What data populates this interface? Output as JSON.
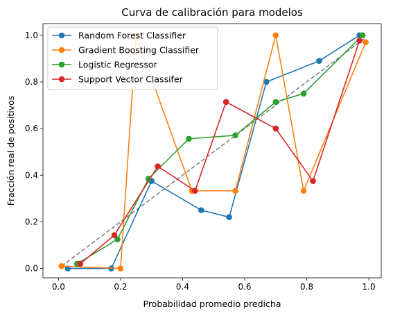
{
  "chart_data": {
    "type": "line",
    "title": "Curva de calibración para modelos",
    "xlabel": "Probabilidad promedio predicha",
    "ylabel": "Fracción real de positivos",
    "xlim": [
      -0.05,
      1.04
    ],
    "ylim": [
      -0.04,
      1.05
    ],
    "xticks": [
      "0.0",
      "0.2",
      "0.4",
      "0.6",
      "0.8",
      "1.0"
    ],
    "yticks": [
      "0.0",
      "0.2",
      "0.4",
      "0.6",
      "0.8",
      "1.0"
    ],
    "grid": false,
    "legend_position": "top-left",
    "reference_line": {
      "x": [
        0.01,
        0.99
      ],
      "y": [
        0.01,
        0.99
      ],
      "color": "#808080",
      "style": "dashed"
    },
    "series": [
      {
        "name": "Random Forest Classifier",
        "color": "#1f77b4",
        "x": [
          0.03,
          0.17,
          0.3,
          0.46,
          0.55,
          0.67,
          0.84,
          0.97
        ],
        "y": [
          0.0,
          0.0,
          0.375,
          0.25,
          0.22,
          0.8,
          0.89,
          1.0
        ]
      },
      {
        "name": "Gradient Boosting Classifier",
        "color": "#ff7f0e",
        "x": [
          0.01,
          0.2,
          0.25,
          0.43,
          0.57,
          0.7,
          0.79,
          0.99
        ],
        "y": [
          0.01,
          0.0,
          1.0,
          0.333,
          0.333,
          1.0,
          0.333,
          0.97
        ]
      },
      {
        "name": "Logistic Regressor",
        "color": "#2ca02c",
        "x": [
          0.06,
          0.19,
          0.29,
          0.42,
          0.57,
          0.7,
          0.79,
          0.98
        ],
        "y": [
          0.02,
          0.125,
          0.385,
          0.556,
          0.571,
          0.714,
          0.75,
          1.0
        ]
      },
      {
        "name": "Support Vector Classifer",
        "color": "#d62728",
        "x": [
          0.07,
          0.18,
          0.32,
          0.44,
          0.54,
          0.7,
          0.82,
          0.97
        ],
        "y": [
          0.02,
          0.143,
          0.438,
          0.333,
          0.714,
          0.6,
          0.375,
          0.977
        ]
      }
    ]
  }
}
